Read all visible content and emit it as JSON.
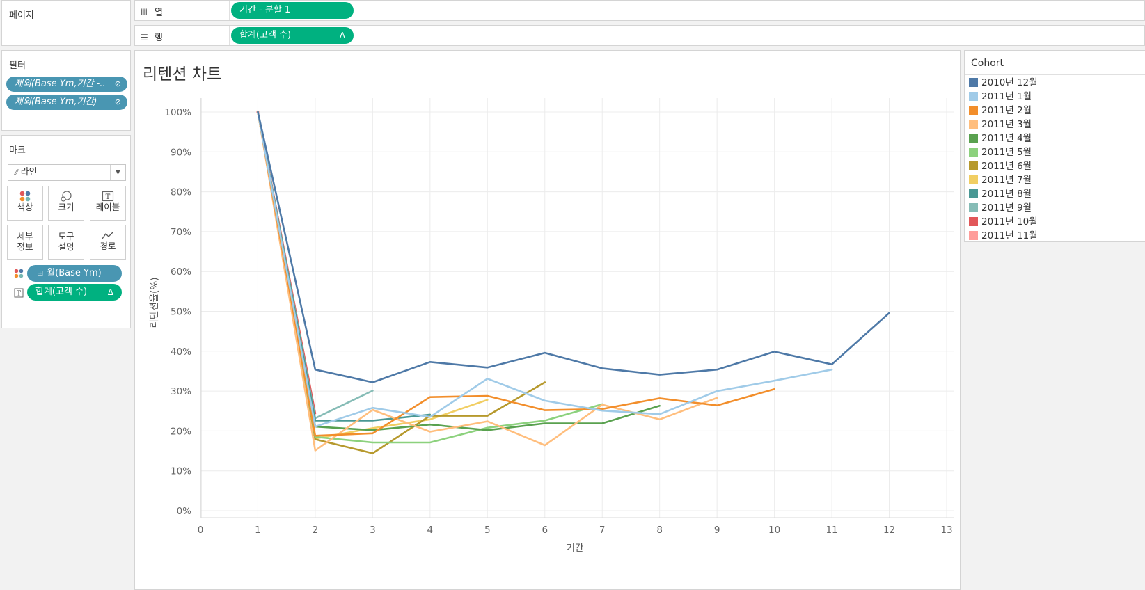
{
  "pages": {
    "title": "페이지"
  },
  "filters": {
    "title": "필터",
    "items": [
      "제외(Base Ym,기간 -..",
      "제외(Base Ym,기간)"
    ]
  },
  "marks": {
    "title": "마크",
    "mark_type": "라인",
    "buttons": {
      "color": "색상",
      "size": "크기",
      "label": "레이블",
      "detail": [
        "세부",
        "정보"
      ],
      "tooltip": [
        "도구",
        "설명"
      ],
      "path": "경로"
    },
    "fields": [
      {
        "label": "월(Base Ym)",
        "icon": "color-dots-icon"
      },
      {
        "label": "합계(고객 수)",
        "icon": "text-label-icon"
      }
    ]
  },
  "shelves": {
    "columns": {
      "label": "열",
      "pill": "기간 - 분할 1"
    },
    "rows": {
      "label": "행",
      "pill": "합계(고객 수)",
      "delta": "Δ"
    }
  },
  "legend": {
    "title": "Cohort",
    "items": [
      {
        "label": "2010년 12월",
        "color": "#4e79a7"
      },
      {
        "label": "2011년 1월",
        "color": "#a0cbe8"
      },
      {
        "label": "2011년 2월",
        "color": "#f28e2b"
      },
      {
        "label": "2011년 3월",
        "color": "#ffbe7d"
      },
      {
        "label": "2011년 4월",
        "color": "#59a14f"
      },
      {
        "label": "2011년 5월",
        "color": "#8cd17d"
      },
      {
        "label": "2011년 6월",
        "color": "#b6992d"
      },
      {
        "label": "2011년 7월",
        "color": "#f1ce63"
      },
      {
        "label": "2011년 8월",
        "color": "#499894"
      },
      {
        "label": "2011년 9월",
        "color": "#86bcb6"
      },
      {
        "label": "2011년 10월",
        "color": "#e15759"
      },
      {
        "label": "2011년 11월",
        "color": "#ff9d9a"
      }
    ]
  },
  "chart_data": {
    "type": "line",
    "title": "리텐션 차트",
    "xlabel": "기간",
    "ylabel": "리텐션율(%)",
    "xlim": [
      0,
      13
    ],
    "ylim": [
      0,
      100
    ],
    "x_ticks": [
      "0",
      "1",
      "2",
      "3",
      "4",
      "5",
      "6",
      "7",
      "8",
      "9",
      "10",
      "11",
      "12",
      "13"
    ],
    "y_ticks": [
      "0%",
      "10%",
      "20%",
      "30%",
      "40%",
      "50%",
      "60%",
      "70%",
      "80%",
      "90%",
      "100%"
    ],
    "grid": true,
    "legend_position": "right",
    "series": [
      {
        "name": "2010년 12월",
        "color": "#4e79a7",
        "x": [
          1,
          2,
          3,
          4,
          5,
          6,
          7,
          8,
          9,
          10,
          11,
          12
        ],
        "y": [
          100,
          35.4,
          32.2,
          37.3,
          35.9,
          39.6,
          35.7,
          34.1,
          35.4,
          39.9,
          36.7,
          49.6
        ]
      },
      {
        "name": "2011년 1월",
        "color": "#a0cbe8",
        "x": [
          1,
          2,
          3,
          4,
          5,
          6,
          7,
          8,
          9,
          10,
          11
        ],
        "y": [
          100,
          21.1,
          25.8,
          23.5,
          33.1,
          27.6,
          25.1,
          24.2,
          30.0,
          32.6,
          35.4
        ]
      },
      {
        "name": "2011년 2월",
        "color": "#f28e2b",
        "x": [
          1,
          2,
          3,
          4,
          5,
          6,
          7,
          8,
          9,
          10
        ],
        "y": [
          100,
          18.8,
          19.4,
          28.5,
          28.8,
          25.2,
          25.5,
          28.2,
          26.4,
          30.5
        ]
      },
      {
        "name": "2011년 3월",
        "color": "#ffbe7d",
        "x": [
          1,
          2,
          3,
          4,
          5,
          6,
          7,
          8,
          9
        ],
        "y": [
          100,
          15.1,
          25.3,
          19.8,
          22.4,
          16.4,
          26.6,
          22.9,
          28.3
        ]
      },
      {
        "name": "2011년 4월",
        "color": "#59a14f",
        "x": [
          1,
          2,
          3,
          4,
          5,
          6,
          7,
          8
        ],
        "y": [
          100,
          21.1,
          20.2,
          21.6,
          20.2,
          21.9,
          21.9,
          26.3
        ]
      },
      {
        "name": "2011년 5월",
        "color": "#8cd17d",
        "x": [
          1,
          2,
          3,
          4,
          5,
          6,
          7
        ],
        "y": [
          100,
          18.5,
          17.1,
          17.1,
          20.8,
          22.6,
          26.7
        ]
      },
      {
        "name": "2011년 6월",
        "color": "#b6992d",
        "x": [
          1,
          2,
          3,
          4,
          5,
          6
        ],
        "y": [
          100,
          17.9,
          14.4,
          23.8,
          23.8,
          32.2
        ]
      },
      {
        "name": "2011년 7월",
        "color": "#f1ce63",
        "x": [
          1,
          2,
          3,
          4,
          5
        ],
        "y": [
          100,
          18.1,
          20.7,
          22.9,
          27.8
        ]
      },
      {
        "name": "2011년 8월",
        "color": "#499894",
        "x": [
          1,
          2,
          3,
          4
        ],
        "y": [
          100,
          22.6,
          22.6,
          24.1
        ]
      },
      {
        "name": "2011년 9월",
        "color": "#86bcb6",
        "x": [
          1,
          2,
          3
        ],
        "y": [
          100,
          23.2,
          30.1
        ]
      },
      {
        "name": "2011년 10월",
        "color": "#e15759",
        "x": [
          1,
          2
        ],
        "y": [
          100,
          24.4
        ]
      },
      {
        "name": "2011년 11월",
        "color": "#ff9d9a",
        "x": [
          1
        ],
        "y": [
          100
        ]
      }
    ]
  }
}
